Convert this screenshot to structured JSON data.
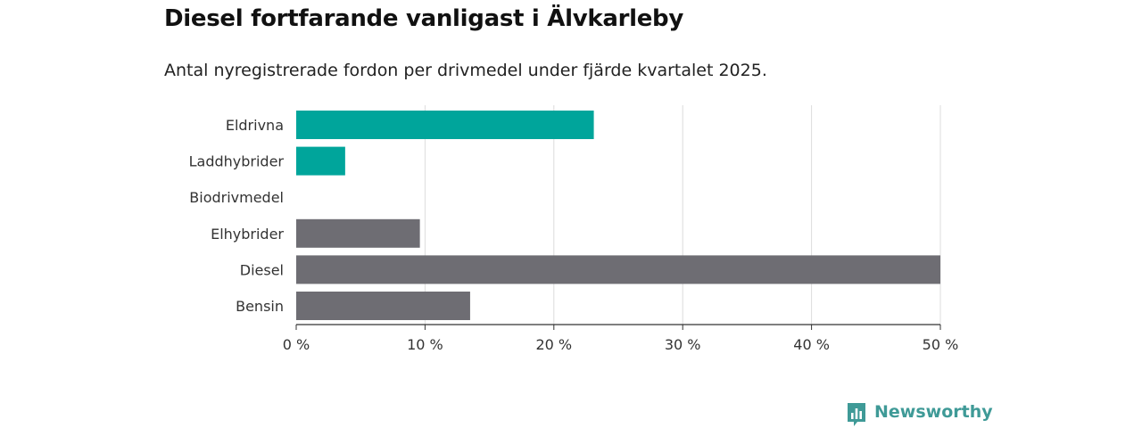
{
  "header": {
    "title": "Diesel fortfarande vanligast i Älvkarleby",
    "subtitle": "Antal nyregistrerade fordon per drivmedel under fjärde kvartalet 2025."
  },
  "chart_data": {
    "type": "bar",
    "orientation": "horizontal",
    "categories": [
      "Eldrivna",
      "Laddhybrider",
      "Biodrivmedel",
      "Elhybrider",
      "Diesel",
      "Bensin"
    ],
    "values": [
      23.1,
      3.8,
      0,
      9.6,
      50.0,
      13.5
    ],
    "bar_colors": [
      "#00a59b",
      "#00a59b",
      "#00a59b",
      "#6e6d73",
      "#6e6d73",
      "#6e6d73"
    ],
    "xlim": [
      0,
      50
    ],
    "x_ticks": [
      0,
      10,
      20,
      30,
      40,
      50
    ],
    "x_tick_labels": [
      "0 %",
      "10 %",
      "20 %",
      "30 %",
      "40 %",
      "50 %"
    ],
    "grid": true,
    "xlabel": "",
    "ylabel": ""
  },
  "branding": {
    "name": "Newsworthy",
    "color": "#3f9a97"
  }
}
